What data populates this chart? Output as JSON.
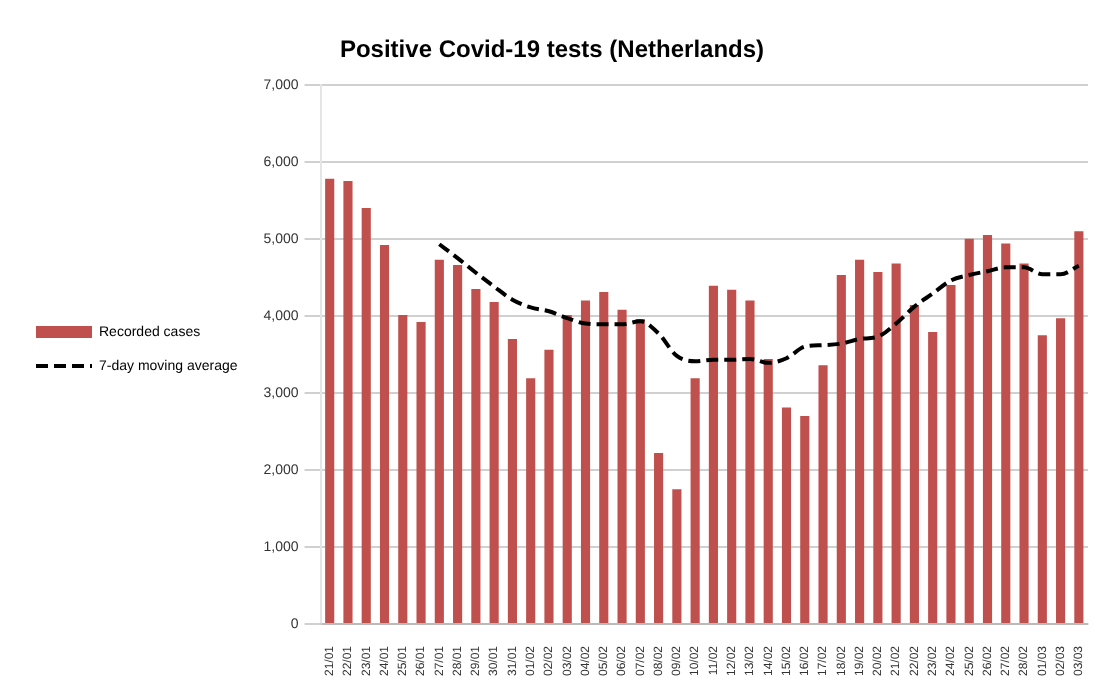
{
  "chart_data": {
    "type": "bar",
    "title": "Positive Covid-19 tests (Netherlands)",
    "categories": [
      "21/01",
      "22/01",
      "23/01",
      "24/01",
      "25/01",
      "26/01",
      "27/01",
      "28/01",
      "29/01",
      "30/01",
      "31/01",
      "01/02",
      "02/02",
      "03/02",
      "04/02",
      "05/02",
      "06/02",
      "07/02",
      "08/02",
      "09/02",
      "10/02",
      "11/02",
      "12/02",
      "13/02",
      "14/02",
      "15/02",
      "16/02",
      "17/02",
      "18/02",
      "19/02",
      "20/02",
      "21/02",
      "22/02",
      "23/02",
      "24/02",
      "25/02",
      "26/02",
      "27/02",
      "28/02",
      "01/03",
      "02/03",
      "03/03"
    ],
    "series": [
      {
        "name": "Recorded cases",
        "color": "#c0504d",
        "values": [
          5780,
          5750,
          5400,
          4920,
          4010,
          3920,
          4730,
          4660,
          4350,
          4180,
          3700,
          3190,
          3560,
          4010,
          4200,
          4310,
          4080,
          3960,
          2220,
          1750,
          3190,
          4390,
          4340,
          4200,
          3440,
          2810,
          2700,
          3360,
          4530,
          4730,
          4570,
          4680,
          4140,
          3790,
          4400,
          5000,
          5050,
          4940,
          4680,
          3750,
          3970,
          5100
        ]
      },
      {
        "name": "7-day moving average",
        "type": "line",
        "color": "#000000",
        "line_style": "dashed",
        "marker": "none",
        "values": [
          null,
          null,
          null,
          null,
          null,
          null,
          4930,
          4750,
          4560,
          4380,
          4210,
          4110,
          4060,
          3970,
          3900,
          3890,
          3890,
          3930,
          3770,
          3480,
          3410,
          3430,
          3430,
          3440,
          3390,
          3450,
          3600,
          3620,
          3640,
          3700,
          3730,
          3900,
          4120,
          4290,
          4460,
          4530,
          4580,
          4630,
          4630,
          4540,
          4540,
          4650
        ]
      }
    ],
    "ylim": [
      0,
      7000
    ],
    "yticks": [
      0,
      {
        "value": 1000,
        "label": "1,000"
      },
      {
        "value": 2000,
        "label": "2,000"
      },
      {
        "value": 3000,
        "label": "3,000"
      },
      {
        "value": 4000,
        "label": "4,000"
      },
      {
        "value": 5000,
        "label": "5,000"
      },
      {
        "value": 6000,
        "label": "6,000"
      },
      {
        "value": 7000,
        "label": "7,000"
      }
    ],
    "grid": "y",
    "legend": "left"
  }
}
